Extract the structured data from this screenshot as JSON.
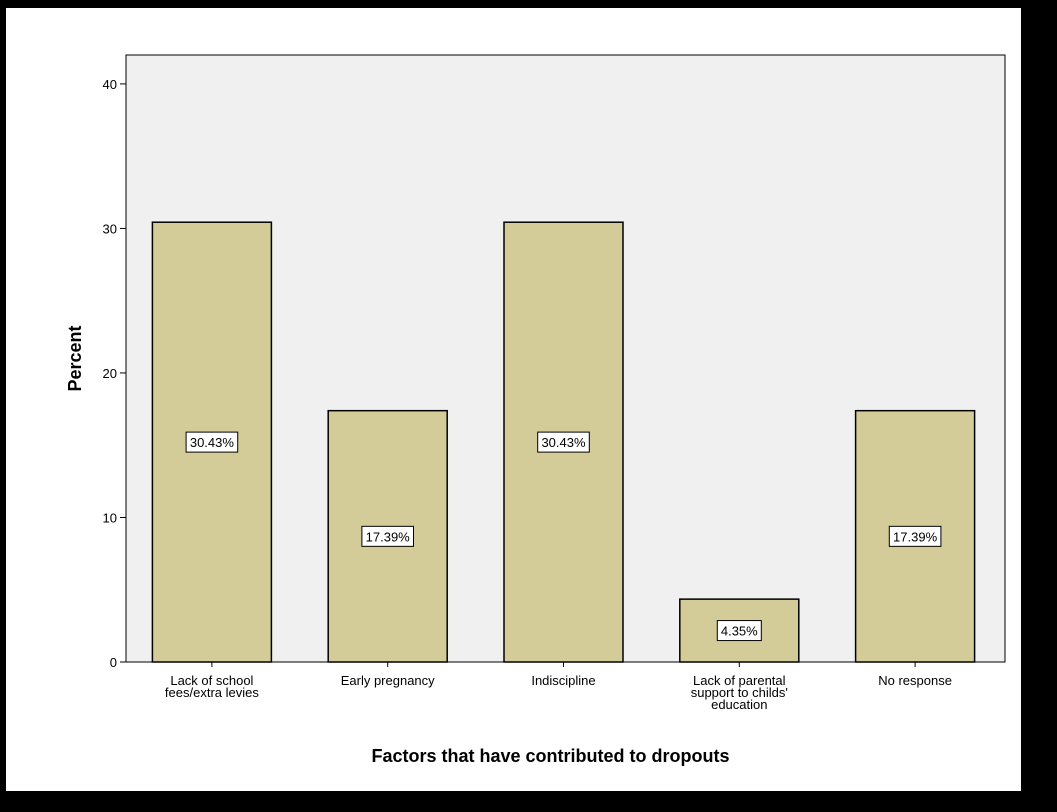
{
  "chart_data": {
    "type": "bar",
    "categories": [
      [
        "Lack of school",
        "fees/extra levies"
      ],
      [
        "Early pregnancy"
      ],
      [
        "Indiscipline"
      ],
      [
        "Lack of parental",
        "support to childs'",
        "education"
      ],
      [
        "No response"
      ]
    ],
    "values": [
      30.43,
      17.39,
      30.43,
      4.35,
      17.39
    ],
    "data_labels": [
      "30.43%",
      "17.39%",
      "30.43%",
      "4.35%",
      "17.39%"
    ],
    "title": "",
    "xlabel": "Factors that have contributed to dropouts",
    "ylabel": "Percent",
    "ylim": [
      0,
      42
    ],
    "yticks": [
      0,
      10,
      20,
      30,
      40
    ],
    "grid": false,
    "colors": {
      "bar_fill": "#d3cc98",
      "bar_stroke": "#000000",
      "plot_bg": "#f0f0f0",
      "label_bg": "#ffffff"
    }
  }
}
